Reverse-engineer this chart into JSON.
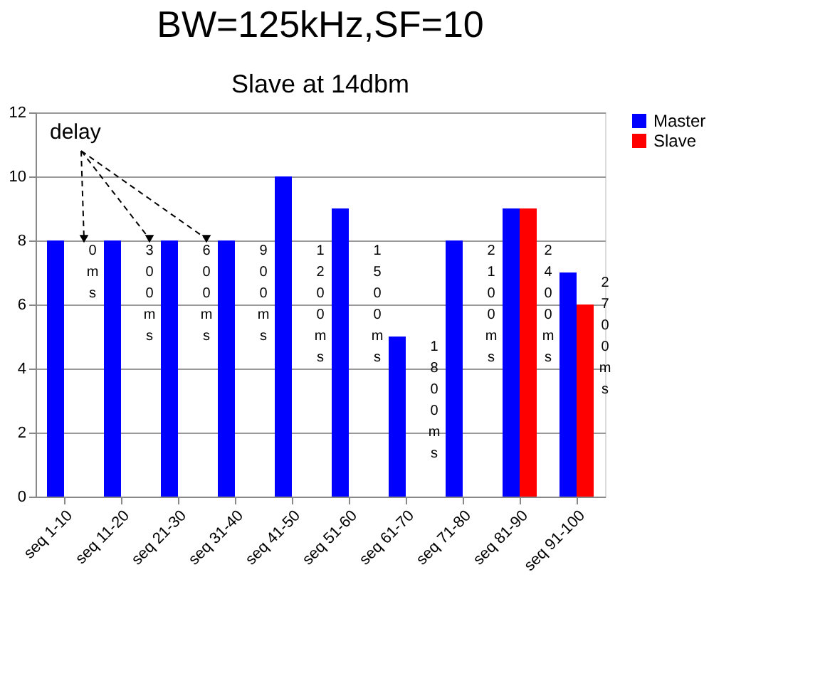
{
  "chart_data": {
    "type": "bar",
    "title": "BW=125kHz,SF=10",
    "subtitle": "Slave at 14dbm",
    "categories": [
      "seq 1-10",
      "seq 11-20",
      "seq 21-30",
      "seq 31-40",
      "seq 41-50",
      "seq 51-60",
      "seq 61-70",
      "seq 71-80",
      "seq 81-90",
      "seq 91-100"
    ],
    "series": [
      {
        "name": "Master",
        "color": "#0000ff",
        "values": [
          8,
          8,
          8,
          8,
          10,
          9,
          5,
          8,
          9,
          7
        ]
      },
      {
        "name": "Slave",
        "color": "#ff0000",
        "values": [
          null,
          null,
          null,
          null,
          null,
          null,
          null,
          null,
          9,
          6
        ]
      }
    ],
    "ylim": [
      0,
      12
    ],
    "yticks": [
      0,
      2,
      4,
      6,
      8,
      10,
      12
    ],
    "grid": "y",
    "legend": "right",
    "annotations": [
      "delay",
      "0ms",
      "300ms",
      "600ms",
      "900ms",
      "1200ms",
      "1500ms",
      "1800ms",
      "2100ms",
      "2400ms",
      "2700ms"
    ]
  }
}
